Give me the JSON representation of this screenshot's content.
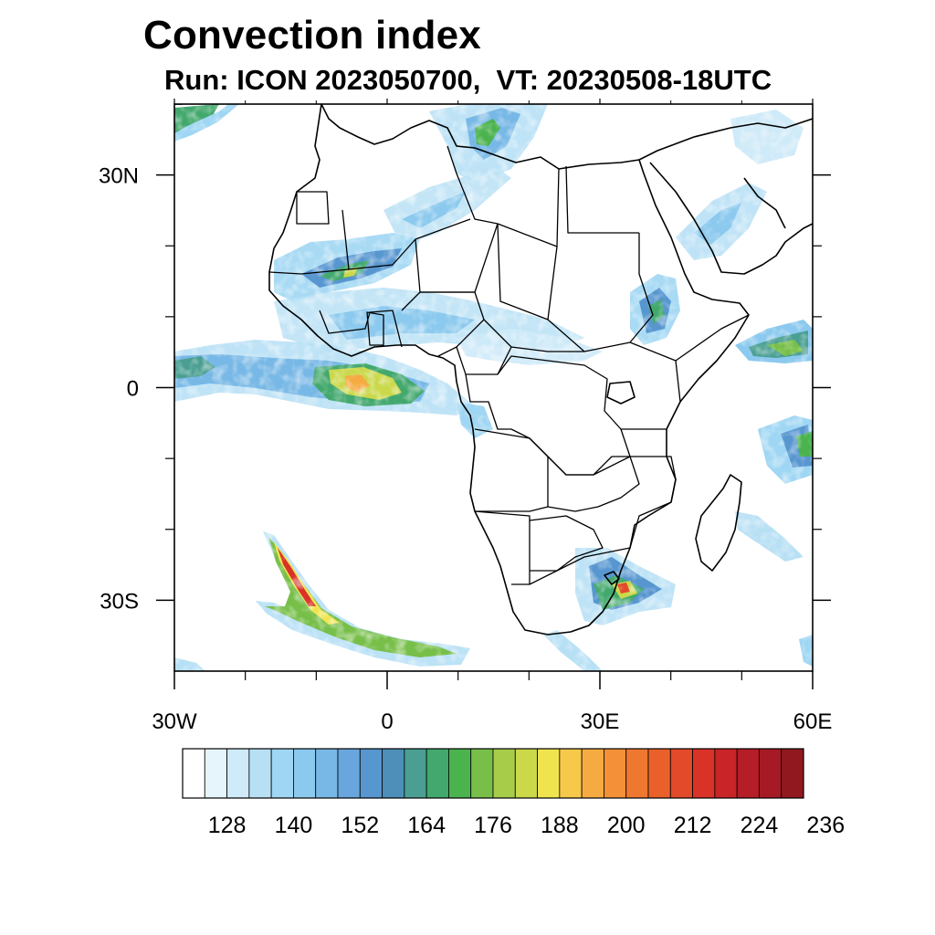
{
  "title": "Convection index",
  "subtitle": "Run: ICON 2023050700,  VT: 20230508-18UTC",
  "map": {
    "projection": "cylindrical-equidistant",
    "lon_range": [
      -30,
      60
    ],
    "lat_range": [
      -40,
      40
    ],
    "lon_ticks": [
      {
        "lon": -30,
        "label": "30W"
      },
      {
        "lon": 0,
        "label": "0"
      },
      {
        "lon": 30,
        "label": "30E"
      },
      {
        "lon": 60,
        "label": "60E"
      }
    ],
    "lat_ticks": [
      {
        "lat": 30,
        "label": "30N"
      },
      {
        "lat": 0,
        "label": "0"
      },
      {
        "lat": -30,
        "label": "30S"
      }
    ],
    "minor_lon": [
      -20,
      -10,
      10,
      20,
      40,
      50
    ],
    "minor_lat": [
      20,
      10,
      -10,
      -20
    ]
  },
  "colorbar": {
    "colors": [
      "#ffffff",
      "#e6f4fb",
      "#cfeaf8",
      "#b8e0f5",
      "#9fd6f3",
      "#8bc9ee",
      "#78b8e6",
      "#68a6dd",
      "#5796cf",
      "#4d8fb8",
      "#4a9f92",
      "#43a86d",
      "#4bb34e",
      "#78bf4a",
      "#a6cc4a",
      "#cad84a",
      "#f0e44e",
      "#f7c94a",
      "#f5ab42",
      "#f39038",
      "#ef7830",
      "#ea602b",
      "#e24a29",
      "#d93328",
      "#c92428",
      "#b51d27",
      "#a51a24",
      "#921820"
    ],
    "labels": [
      "128",
      "140",
      "152",
      "164",
      "176",
      "188",
      "200",
      "212",
      "224",
      "236"
    ],
    "label_positions": [
      2,
      5,
      8,
      11,
      14,
      17,
      20,
      23,
      26,
      29
    ]
  }
}
